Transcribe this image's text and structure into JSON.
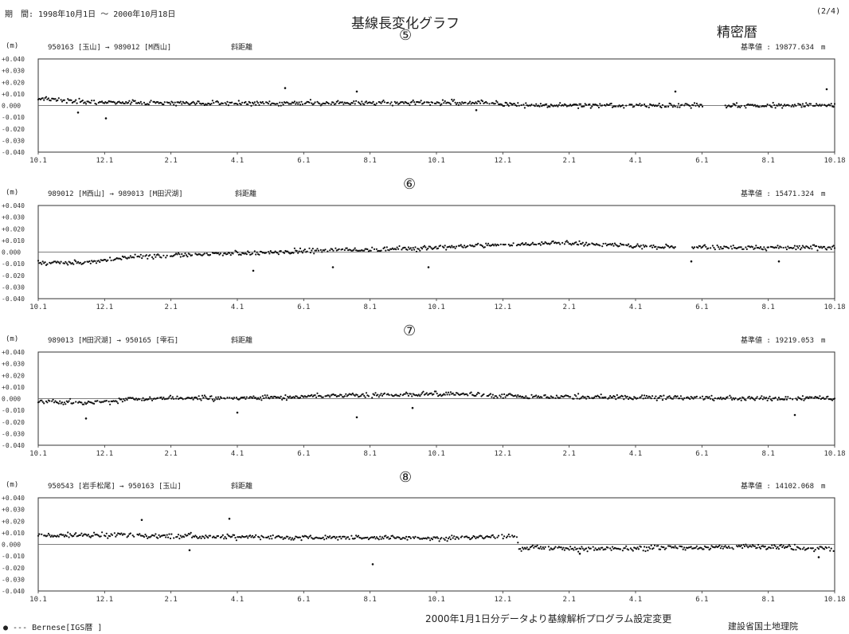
{
  "header": {
    "period": "期　間: 1998年10月1日 ～ 2000年10月18日",
    "title": "基線長変化グラフ",
    "subtitle": "精密暦",
    "page": "(2/4)"
  },
  "footer": {
    "legend": "● --- Bernese[IGS暦 ]",
    "note": "2000年1月1日分データより基線解析プログラム設定変更",
    "org": "建設省国土地理院"
  },
  "chart_data": [
    {
      "type": "scatter",
      "number": "⑤",
      "unit": "(m)",
      "baseline": "950163 [玉山] → 989012 [M西山]",
      "kind": "斜距離",
      "reference": "基準値 : 19877.634　m",
      "yticks": [
        "+0.040",
        "+0.030",
        "+0.020",
        "+0.010",
        "0.000",
        "-0.010",
        "-0.020",
        "-0.030",
        "-0.040"
      ],
      "xticks": [
        "10.1",
        "12.1",
        "2.1",
        "4.1",
        "6.1",
        "8.1",
        "10.1",
        "12.1",
        "2.1",
        "4.1",
        "6.1",
        "8.1",
        "10.18"
      ],
      "ylim": [
        -0.04,
        0.04
      ],
      "trend": [
        [
          0,
          0.006
        ],
        [
          0.07,
          0.003
        ],
        [
          0.15,
          0.002
        ],
        [
          0.3,
          0.002
        ],
        [
          0.45,
          0.002
        ],
        [
          0.55,
          0.003
        ],
        [
          0.62,
          0.0
        ],
        [
          0.75,
          0.0
        ],
        [
          1.0,
          0.0
        ]
      ],
      "gaps": [
        [
          0.835,
          0.86
        ]
      ],
      "outliers": [
        [
          0.085,
          -0.011
        ],
        [
          0.31,
          0.015
        ],
        [
          0.4,
          0.012
        ],
        [
          0.8,
          0.012
        ],
        [
          0.99,
          0.014
        ],
        [
          0.05,
          -0.006
        ],
        [
          0.55,
          -0.004
        ]
      ]
    },
    {
      "type": "scatter",
      "number": "⑥",
      "unit": "(m)",
      "baseline": "989012 [M西山] → 989013 [M田沢湖]",
      "kind": "斜距離",
      "reference": "基準値 : 15471.324　m",
      "yticks": [
        "+0.040",
        "+0.030",
        "+0.020",
        "+0.010",
        "0.000",
        "-0.010",
        "-0.020",
        "-0.030",
        "-0.040"
      ],
      "xticks": [
        "10.1",
        "12.1",
        "2.1",
        "4.1",
        "6.1",
        "8.1",
        "10.1",
        "12.1",
        "2.1",
        "4.1",
        "6.1",
        "8.1",
        "10.18"
      ],
      "ylim": [
        -0.04,
        0.04
      ],
      "trend": [
        [
          0,
          -0.009
        ],
        [
          0.06,
          -0.009
        ],
        [
          0.12,
          -0.004
        ],
        [
          0.2,
          -0.002
        ],
        [
          0.3,
          0.0
        ],
        [
          0.4,
          0.002
        ],
        [
          0.5,
          0.004
        ],
        [
          0.58,
          0.006
        ],
        [
          0.66,
          0.008
        ],
        [
          0.75,
          0.005
        ],
        [
          0.85,
          0.004
        ],
        [
          1.0,
          0.004
        ]
      ],
      "gaps": [
        [
          0.8,
          0.82
        ]
      ],
      "outliers": [
        [
          0.27,
          -0.016
        ],
        [
          0.37,
          -0.013
        ],
        [
          0.49,
          -0.013
        ],
        [
          0.82,
          -0.008
        ],
        [
          0.93,
          -0.008
        ]
      ]
    },
    {
      "type": "scatter",
      "number": "⑦",
      "unit": "(m)",
      "baseline": "989013 [M田沢湖] → 950165 [雫石]",
      "kind": "斜距離",
      "reference": "基準値 : 19219.053　m",
      "yticks": [
        "+0.040",
        "+0.030",
        "+0.020",
        "+0.010",
        "0.000",
        "-0.010",
        "-0.020",
        "-0.030",
        "-0.040"
      ],
      "xticks": [
        "10.1",
        "12.1",
        "2.1",
        "4.1",
        "6.1",
        "8.1",
        "10.1",
        "12.1",
        "2.1",
        "4.1",
        "6.1",
        "8.1",
        "10.18"
      ],
      "ylim": [
        -0.04,
        0.04
      ],
      "trend": [
        [
          0,
          -0.002
        ],
        [
          0.06,
          -0.004
        ],
        [
          0.12,
          0.0
        ],
        [
          0.3,
          0.001
        ],
        [
          0.4,
          0.003
        ],
        [
          0.5,
          0.004
        ],
        [
          0.6,
          0.002
        ],
        [
          0.75,
          0.001
        ],
        [
          1.0,
          0.0
        ]
      ],
      "gaps": [],
      "outliers": [
        [
          0.06,
          -0.017
        ],
        [
          0.25,
          -0.012
        ],
        [
          0.4,
          -0.016
        ],
        [
          0.47,
          -0.008
        ],
        [
          0.95,
          -0.014
        ]
      ]
    },
    {
      "type": "scatter",
      "number": "⑧",
      "unit": "(m)",
      "baseline": "950543 [岩手松尾] → 950163 [玉山]",
      "kind": "斜距離",
      "reference": "基準値 : 14102.068　m",
      "yticks": [
        "+0.040",
        "+0.030",
        "+0.020",
        "+0.010",
        "0.000",
        "-0.010",
        "-0.020",
        "-0.030",
        "-0.040"
      ],
      "xticks": [
        "10.1",
        "12.1",
        "2.1",
        "4.1",
        "6.1",
        "8.1",
        "10.1",
        "12.1",
        "2.1",
        "4.1",
        "6.1",
        "8.1",
        "10.18"
      ],
      "ylim": [
        -0.04,
        0.04
      ],
      "trend": [
        [
          0,
          0.008
        ],
        [
          0.1,
          0.008
        ],
        [
          0.2,
          0.007
        ],
        [
          0.3,
          0.006
        ],
        [
          0.4,
          0.006
        ],
        [
          0.5,
          0.005
        ],
        [
          0.6,
          0.007
        ],
        [
          0.604,
          -0.003
        ],
        [
          0.7,
          -0.004
        ],
        [
          0.8,
          -0.003
        ],
        [
          0.9,
          -0.002
        ],
        [
          1.0,
          -0.004
        ]
      ],
      "gaps": [],
      "outliers": [
        [
          0.13,
          0.021
        ],
        [
          0.24,
          0.022
        ],
        [
          0.42,
          -0.017
        ],
        [
          0.19,
          -0.005
        ],
        [
          0.68,
          -0.008
        ],
        [
          0.98,
          -0.011
        ]
      ]
    }
  ]
}
